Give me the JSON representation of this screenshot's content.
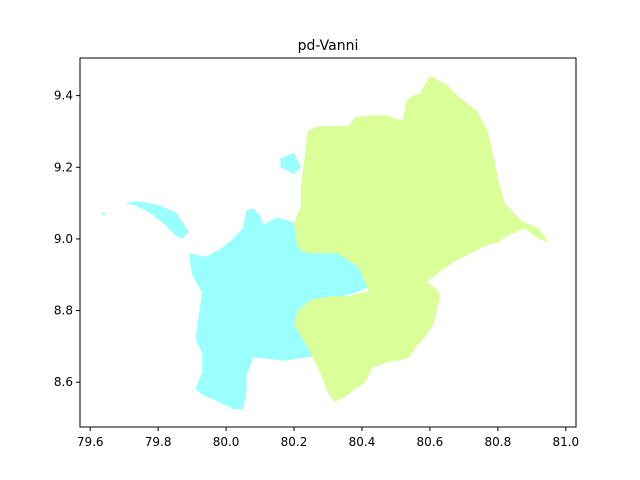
{
  "chart_data": {
    "type": "map",
    "title": "pd-Vanni",
    "xlim": [
      79.57,
      81.03
    ],
    "ylim": [
      8.475,
      9.505
    ],
    "x_ticks": [
      79.6,
      79.8,
      80.0,
      80.2,
      80.4,
      80.6,
      80.8,
      81.0
    ],
    "y_ticks": [
      8.6,
      8.8,
      9.0,
      9.2,
      9.4
    ],
    "x_tick_labels": [
      "79.6",
      "79.8",
      "80.0",
      "80.2",
      "80.4",
      "80.6",
      "80.8",
      "81.0"
    ],
    "y_tick_labels": [
      "8.6",
      "8.8",
      "9.0",
      "9.2",
      "9.4"
    ],
    "regions": [
      {
        "color": "#99ffff",
        "polygons": [
          [
            [
              79.7,
              9.1
            ],
            [
              79.74,
              9.105
            ],
            [
              79.8,
              9.095
            ],
            [
              79.85,
              9.075
            ],
            [
              79.87,
              9.05
            ],
            [
              79.89,
              9.02
            ],
            [
              79.87,
              9.0
            ],
            [
              79.85,
              9.01
            ],
            [
              79.82,
              9.04
            ],
            [
              79.78,
              9.07
            ],
            [
              79.73,
              9.095
            ],
            [
              79.7,
              9.1
            ]
          ],
          [
            [
              79.89,
              8.96
            ],
            [
              79.94,
              8.95
            ],
            [
              79.98,
              8.97
            ],
            [
              80.02,
              9.0
            ],
            [
              80.05,
              9.03
            ],
            [
              80.06,
              9.08
            ],
            [
              80.08,
              9.085
            ],
            [
              80.1,
              9.065
            ],
            [
              80.11,
              9.04
            ],
            [
              80.15,
              9.06
            ],
            [
              80.2,
              9.045
            ],
            [
              80.21,
              8.975
            ],
            [
              80.27,
              8.96
            ],
            [
              80.33,
              8.96
            ],
            [
              80.39,
              8.92
            ],
            [
              80.42,
              8.865
            ],
            [
              80.38,
              8.85
            ],
            [
              80.3,
              8.83
            ],
            [
              80.27,
              8.8
            ],
            [
              80.27,
              8.76
            ],
            [
              80.27,
              8.72
            ],
            [
              80.32,
              8.68
            ],
            [
              80.24,
              8.67
            ],
            [
              80.17,
              8.66
            ],
            [
              80.08,
              8.67
            ],
            [
              80.06,
              8.62
            ],
            [
              80.06,
              8.575
            ],
            [
              80.05,
              8.525
            ],
            [
              80.02,
              8.525
            ],
            [
              79.98,
              8.545
            ],
            [
              79.94,
              8.56
            ],
            [
              79.91,
              8.58
            ],
            [
              79.93,
              8.63
            ],
            [
              79.93,
              8.68
            ],
            [
              79.91,
              8.72
            ],
            [
              79.92,
              8.79
            ],
            [
              79.93,
              8.85
            ],
            [
              79.9,
              8.9
            ],
            [
              79.89,
              8.96
            ]
          ],
          [
            [
              80.16,
              9.225
            ],
            [
              80.2,
              9.24
            ],
            [
              80.22,
              9.2
            ],
            [
              80.2,
              9.18
            ],
            [
              80.16,
              9.2
            ],
            [
              80.16,
              9.225
            ]
          ]
        ]
      },
      {
        "color": "#daff99",
        "polygons": [
          [
            [
              80.24,
              9.3
            ],
            [
              80.27,
              9.315
            ],
            [
              80.33,
              9.315
            ],
            [
              80.36,
              9.315
            ],
            [
              80.38,
              9.34
            ],
            [
              80.44,
              9.345
            ],
            [
              80.47,
              9.345
            ],
            [
              80.52,
              9.33
            ],
            [
              80.53,
              9.385
            ],
            [
              80.55,
              9.4
            ],
            [
              80.57,
              9.405
            ],
            [
              80.6,
              9.455
            ],
            [
              80.65,
              9.43
            ],
            [
              80.68,
              9.4
            ],
            [
              80.74,
              9.355
            ],
            [
              80.77,
              9.3
            ],
            [
              80.79,
              9.22
            ],
            [
              80.8,
              9.17
            ],
            [
              80.82,
              9.1
            ],
            [
              80.85,
              9.07
            ],
            [
              80.87,
              9.05
            ],
            [
              80.92,
              9.03
            ],
            [
              80.95,
              8.99
            ],
            [
              80.92,
              9.0
            ],
            [
              80.88,
              9.03
            ],
            [
              80.83,
              9.01
            ],
            [
              80.8,
              8.99
            ],
            [
              80.76,
              8.98
            ],
            [
              80.7,
              8.95
            ],
            [
              80.66,
              8.93
            ],
            [
              80.59,
              8.88
            ],
            [
              80.62,
              8.86
            ],
            [
              80.63,
              8.84
            ],
            [
              80.61,
              8.76
            ],
            [
              80.58,
              8.72
            ],
            [
              80.56,
              8.7
            ],
            [
              80.54,
              8.67
            ],
            [
              80.51,
              8.66
            ],
            [
              80.49,
              8.66
            ],
            [
              80.43,
              8.64
            ],
            [
              80.41,
              8.6
            ],
            [
              80.38,
              8.58
            ],
            [
              80.35,
              8.56
            ],
            [
              80.32,
              8.545
            ],
            [
              80.3,
              8.57
            ],
            [
              80.28,
              8.62
            ],
            [
              80.25,
              8.68
            ],
            [
              80.22,
              8.73
            ],
            [
              80.2,
              8.76
            ],
            [
              80.21,
              8.8
            ],
            [
              80.25,
              8.83
            ],
            [
              80.3,
              8.84
            ],
            [
              80.36,
              8.84
            ],
            [
              80.42,
              8.855
            ],
            [
              80.39,
              8.92
            ],
            [
              80.33,
              8.96
            ],
            [
              80.24,
              8.96
            ],
            [
              80.21,
              8.975
            ],
            [
              80.2,
              9.045
            ],
            [
              80.22,
              9.09
            ],
            [
              80.22,
              9.14
            ],
            [
              80.23,
              9.22
            ],
            [
              80.24,
              9.3
            ]
          ]
        ]
      }
    ],
    "points": [
      {
        "color": "#99ffff",
        "x": 79.64,
        "y": 9.07
      }
    ]
  }
}
